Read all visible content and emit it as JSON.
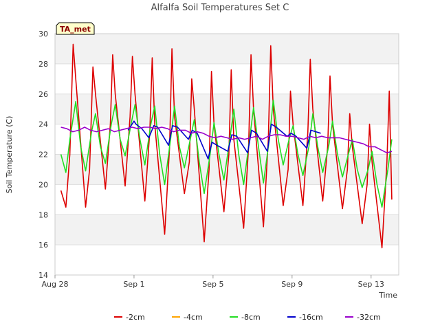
{
  "chart_data": {
    "type": "line",
    "title": "Alfalfa Soil Temperatures Set C",
    "xlabel": "Time",
    "ylabel": "Soil Temperature (C)",
    "badge": "TA_met",
    "xlim": [
      0,
      17.4
    ],
    "ylim": [
      14,
      30
    ],
    "x_unit": "days since Aug 28",
    "x_ticks": [
      {
        "x": 0,
        "label": "Aug 28"
      },
      {
        "x": 4,
        "label": "Sep 1"
      },
      {
        "x": 8,
        "label": "Sep 5"
      },
      {
        "x": 12,
        "label": "Sep 9"
      },
      {
        "x": 16,
        "label": "Sep 13"
      }
    ],
    "y_ticks": [
      14,
      16,
      18,
      20,
      22,
      24,
      26,
      28,
      30
    ],
    "grid": true,
    "legend_position": "bottom",
    "series": [
      {
        "name": "-2cm",
        "color": "#dd0000",
        "x": [
          0.3,
          0.55,
          0.75,
          0.92,
          1.05,
          1.55,
          1.75,
          1.92,
          2.05,
          2.55,
          2.8,
          2.92,
          3.05,
          3.55,
          3.8,
          3.92,
          4.05,
          4.55,
          4.8,
          4.92,
          5.05,
          5.55,
          5.8,
          5.92,
          6.05,
          6.55,
          6.8,
          6.92,
          7.05,
          7.55,
          7.8,
          7.92,
          8.05,
          8.55,
          8.8,
          8.92,
          9.05,
          9.55,
          9.8,
          9.92,
          10.05,
          10.55,
          10.8,
          10.92,
          11.05,
          11.55,
          11.8,
          11.92,
          12.05,
          12.55,
          12.8,
          12.92,
          13.05,
          13.55,
          13.8,
          13.92,
          14.05,
          14.55,
          14.8,
          14.92,
          15.05,
          15.55,
          15.8,
          15.92,
          16.05,
          16.55,
          16.8,
          16.92,
          17.05
        ],
        "y": [
          19.6,
          18.5,
          22.0,
          29.3,
          27.0,
          18.5,
          21.0,
          27.8,
          26.0,
          19.7,
          24.0,
          28.6,
          26.0,
          19.9,
          24.5,
          28.5,
          26.0,
          18.9,
          23.5,
          28.4,
          24.0,
          16.7,
          22.5,
          29.0,
          24.5,
          19.4,
          21.5,
          27.0,
          25.0,
          16.2,
          21.0,
          27.5,
          24.0,
          18.2,
          22.0,
          27.6,
          23.0,
          17.1,
          22.5,
          28.6,
          25.0,
          17.2,
          23.0,
          29.2,
          25.0,
          18.6,
          21.0,
          26.2,
          24.0,
          18.6,
          23.5,
          28.3,
          25.0,
          18.9,
          22.5,
          27.2,
          24.0,
          18.4,
          21.0,
          24.7,
          22.5,
          17.4,
          20.0,
          24.0,
          21.5,
          15.8,
          21.5,
          26.2,
          19.0
        ]
      },
      {
        "name": "-4cm",
        "color": "#ffa500",
        "x": [],
        "y": []
      },
      {
        "name": "-8cm",
        "color": "#22dd22",
        "x": [
          0.3,
          0.55,
          0.75,
          1.05,
          1.3,
          1.55,
          1.85,
          2.05,
          2.3,
          2.55,
          2.85,
          3.05,
          3.3,
          3.55,
          3.85,
          4.05,
          4.3,
          4.55,
          4.85,
          5.05,
          5.3,
          5.55,
          5.85,
          6.05,
          6.3,
          6.55,
          6.85,
          7.05,
          7.3,
          7.55,
          7.85,
          8.05,
          8.3,
          8.55,
          8.85,
          9.05,
          9.3,
          9.55,
          9.85,
          10.05,
          10.3,
          10.55,
          10.85,
          11.05,
          11.3,
          11.55,
          11.85,
          12.05,
          12.3,
          12.55,
          12.85,
          13.05,
          13.3,
          13.55,
          13.85,
          14.05,
          14.3,
          14.55,
          14.85,
          15.05,
          15.3,
          15.55,
          15.85,
          16.05,
          16.3,
          16.55,
          16.85,
          17.05
        ],
        "y": [
          22.0,
          20.8,
          23.0,
          25.5,
          22.5,
          20.9,
          23.5,
          24.7,
          22.5,
          21.4,
          24.0,
          25.3,
          23.0,
          21.9,
          24.0,
          25.3,
          23.0,
          21.3,
          24.0,
          25.2,
          22.0,
          20.0,
          23.0,
          25.2,
          22.5,
          21.1,
          23.0,
          24.3,
          21.5,
          19.4,
          22.0,
          24.1,
          22.0,
          20.3,
          23.0,
          25.0,
          22.0,
          20.0,
          23.0,
          25.1,
          22.5,
          20.1,
          23.0,
          25.6,
          23.0,
          21.3,
          23.0,
          23.9,
          22.0,
          20.6,
          22.5,
          24.7,
          22.5,
          20.8,
          22.5,
          24.2,
          22.0,
          20.5,
          22.0,
          23.0,
          21.0,
          19.8,
          21.0,
          22.2,
          20.0,
          18.5,
          21.0,
          23.0
        ]
      },
      {
        "name": "-16cm",
        "color": "#0000cc",
        "x": [
          3.7,
          4.0,
          4.1,
          4.4,
          4.75,
          5.0,
          5.2,
          5.75,
          5.95,
          6.2,
          6.75,
          6.95,
          7.2,
          7.75,
          7.95,
          8.2,
          8.75,
          8.95,
          9.2,
          9.75,
          9.95,
          10.2,
          10.75,
          10.95,
          11.2,
          11.75,
          11.95,
          12.2,
          12.75,
          12.95,
          13.2,
          13.45
        ],
        "y": [
          23.6,
          24.2,
          24.0,
          23.7,
          23.1,
          23.9,
          23.8,
          22.6,
          23.9,
          23.8,
          23.0,
          23.6,
          23.4,
          21.7,
          22.8,
          22.6,
          22.2,
          23.3,
          23.2,
          22.1,
          23.6,
          23.4,
          22.2,
          24.0,
          23.8,
          23.2,
          23.4,
          23.2,
          22.4,
          23.6,
          23.5,
          23.4
        ]
      },
      {
        "name": "-32cm",
        "color": "#9900cc",
        "x": [
          0.3,
          0.6,
          0.9,
          1.2,
          1.5,
          1.8,
          2.1,
          2.4,
          2.7,
          3.0,
          3.3,
          3.6,
          3.9,
          4.2,
          4.5,
          4.8,
          5.1,
          5.4,
          5.7,
          6.0,
          6.3,
          6.6,
          6.9,
          7.2,
          7.5,
          7.8,
          8.1,
          8.4,
          8.7,
          9.0,
          9.3,
          9.6,
          9.9,
          10.2,
          10.5,
          10.8,
          11.1,
          11.4,
          11.7,
          12.0,
          12.3,
          12.6,
          12.9,
          13.2,
          13.5,
          13.8,
          14.1,
          14.4,
          14.7,
          15.0,
          15.3,
          15.6,
          15.9,
          16.2,
          16.5,
          16.8,
          17.05
        ],
        "y": [
          23.8,
          23.7,
          23.5,
          23.6,
          23.8,
          23.6,
          23.5,
          23.6,
          23.7,
          23.5,
          23.6,
          23.7,
          23.8,
          23.7,
          23.8,
          23.8,
          23.7,
          23.8,
          23.7,
          23.5,
          23.6,
          23.6,
          23.4,
          23.5,
          23.4,
          23.2,
          23.1,
          23.2,
          23.1,
          23.0,
          23.1,
          23.0,
          23.1,
          23.2,
          23.0,
          23.2,
          23.3,
          23.3,
          23.2,
          23.2,
          23.1,
          23.0,
          23.2,
          23.1,
          23.2,
          23.1,
          23.1,
          23.1,
          23.0,
          22.9,
          22.8,
          22.7,
          22.5,
          22.5,
          22.3,
          22.1,
          22.2
        ]
      }
    ]
  }
}
